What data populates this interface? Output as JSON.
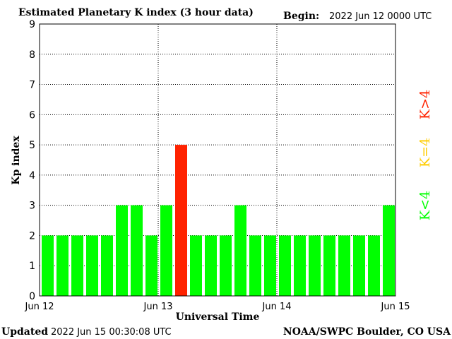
{
  "header": {
    "title": "Estimated Planetary K index (3 hour data)",
    "begin_label": "Begin:",
    "begin_value": "2022 Jun 12 0000 UTC"
  },
  "footer": {
    "updated_label": "Updated",
    "updated_value": "2022 Jun 15 00:30:08 UTC",
    "source": "NOAA/SWPC Boulder, CO USA"
  },
  "legend": {
    "low": "K<4",
    "equal": "K=4",
    "high": "K>4"
  },
  "chart_data": {
    "type": "bar",
    "title": "Estimated Planetary K index (3 hour data)",
    "xlabel": "Universal Time",
    "ylabel": "Kp index",
    "ylim": [
      0,
      9
    ],
    "yticks": [
      0,
      1,
      2,
      3,
      4,
      5,
      6,
      7,
      8,
      9
    ],
    "xticks": [
      "Jun 12",
      "Jun 13",
      "Jun 14",
      "Jun 15"
    ],
    "interval_hours": 3,
    "values": [
      2,
      2,
      2,
      2,
      2,
      3,
      3,
      2,
      3,
      5,
      2,
      2,
      2,
      3,
      2,
      2,
      2,
      2,
      2,
      2,
      2,
      2,
      2,
      3
    ],
    "colors": {
      "low": "#00ff00",
      "equal": "#ffcc00",
      "high": "#ff2200"
    },
    "grid": true
  }
}
